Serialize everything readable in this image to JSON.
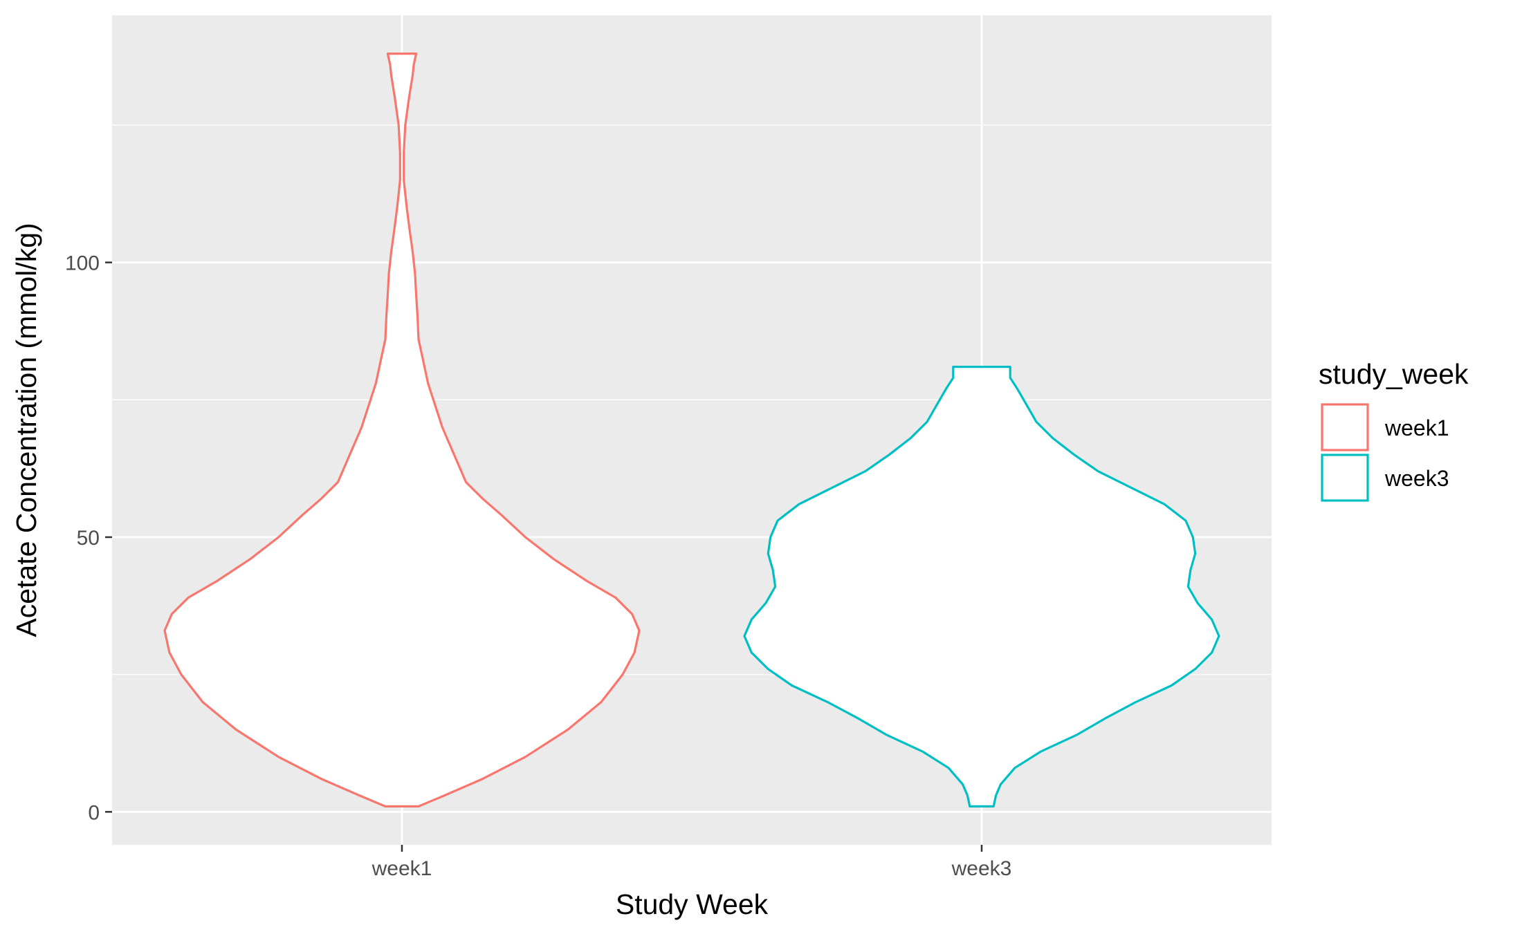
{
  "chart_data": {
    "type": "violin",
    "title": "",
    "xlabel": "Study Week",
    "ylabel": "Acetate Concentration (mmol/kg)",
    "categories": [
      "week1",
      "week3"
    ],
    "yticks": [
      0,
      50,
      100
    ],
    "ylim": [
      -6,
      145
    ],
    "grid": true,
    "legend": {
      "title": "study_week",
      "placement": "right",
      "entries": [
        "week1",
        "week3"
      ]
    },
    "colors": {
      "week1": "#F8766D",
      "week3": "#00BFC4",
      "panel": "#EBEBEB",
      "grid": "#FFFFFF",
      "fill": "#FFFFFF"
    },
    "series": [
      {
        "name": "week1",
        "min": 1,
        "max": 138,
        "profile": [
          [
            1,
            0.07
          ],
          [
            3,
            0.18
          ],
          [
            6,
            0.34
          ],
          [
            10,
            0.52
          ],
          [
            15,
            0.7
          ],
          [
            20,
            0.84
          ],
          [
            25,
            0.93
          ],
          [
            29,
            0.98
          ],
          [
            33,
            1.0
          ],
          [
            36,
            0.97
          ],
          [
            39,
            0.9
          ],
          [
            42,
            0.78
          ],
          [
            46,
            0.64
          ],
          [
            50,
            0.52
          ],
          [
            54,
            0.42
          ],
          [
            57,
            0.34
          ],
          [
            60,
            0.27
          ],
          [
            64,
            0.23
          ],
          [
            67,
            0.2
          ],
          [
            70,
            0.17
          ],
          [
            74,
            0.14
          ],
          [
            78,
            0.11
          ],
          [
            82,
            0.09
          ],
          [
            86,
            0.07
          ],
          [
            90,
            0.066
          ],
          [
            94,
            0.06
          ],
          [
            98,
            0.055
          ],
          [
            102,
            0.045
          ],
          [
            106,
            0.032
          ],
          [
            110,
            0.02
          ],
          [
            115,
            0.008
          ],
          [
            120,
            0.008
          ],
          [
            125,
            0.014
          ],
          [
            130,
            0.03
          ],
          [
            134,
            0.045
          ],
          [
            136,
            0.05
          ],
          [
            138,
            0.06
          ]
        ]
      },
      {
        "name": "week3",
        "min": 1,
        "max": 81,
        "profile": [
          [
            1,
            0.05
          ],
          [
            3,
            0.06
          ],
          [
            5,
            0.08
          ],
          [
            8,
            0.14
          ],
          [
            11,
            0.25
          ],
          [
            14,
            0.4
          ],
          [
            17,
            0.52
          ],
          [
            20,
            0.65
          ],
          [
            23,
            0.8
          ],
          [
            26,
            0.9
          ],
          [
            29,
            0.97
          ],
          [
            32,
            1.0
          ],
          [
            35,
            0.97
          ],
          [
            38,
            0.91
          ],
          [
            41,
            0.87
          ],
          [
            44,
            0.88
          ],
          [
            47,
            0.9
          ],
          [
            50,
            0.89
          ],
          [
            53,
            0.86
          ],
          [
            56,
            0.77
          ],
          [
            59,
            0.63
          ],
          [
            62,
            0.49
          ],
          [
            65,
            0.39
          ],
          [
            68,
            0.3
          ],
          [
            71,
            0.23
          ],
          [
            74,
            0.19
          ],
          [
            77,
            0.15
          ],
          [
            79,
            0.12
          ],
          [
            81,
            0.12
          ]
        ]
      }
    ]
  }
}
